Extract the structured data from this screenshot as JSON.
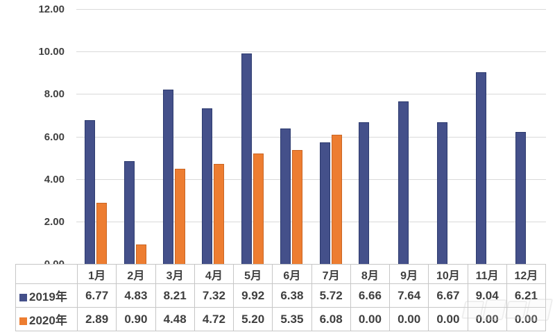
{
  "chart_data": {
    "type": "bar",
    "title": "",
    "categories": [
      "1月",
      "2月",
      "3月",
      "4月",
      "5月",
      "6月",
      "7月",
      "8月",
      "9月",
      "10月",
      "11月",
      "12月"
    ],
    "series": [
      {
        "name": "2019年",
        "color": "#44508A",
        "border_color": "#2C3A6E",
        "values": [
          6.77,
          4.83,
          8.21,
          7.32,
          9.92,
          6.38,
          5.72,
          6.66,
          7.64,
          6.67,
          9.04,
          6.21
        ]
      },
      {
        "name": "2020年",
        "color": "#ED7D31",
        "border_color": "#C96423",
        "values": [
          2.89,
          0.9,
          4.48,
          4.72,
          5.2,
          5.35,
          6.08,
          0.0,
          0.0,
          0.0,
          0.0,
          0.0
        ]
      }
    ],
    "xlabel": "",
    "ylabel": "",
    "ylim": [
      0,
      12
    ],
    "y_ticks": [
      "12.00",
      "10.00",
      "8.00",
      "6.00",
      "4.00",
      "2.00",
      "0.00"
    ],
    "grid": true,
    "legend_position": "table-row-headers",
    "value_decimals": 2
  },
  "colors": {
    "gridline": "#D9D9D9",
    "table_border": "#C6C6C6",
    "text": "#404040",
    "background": "#FFFFFF"
  }
}
